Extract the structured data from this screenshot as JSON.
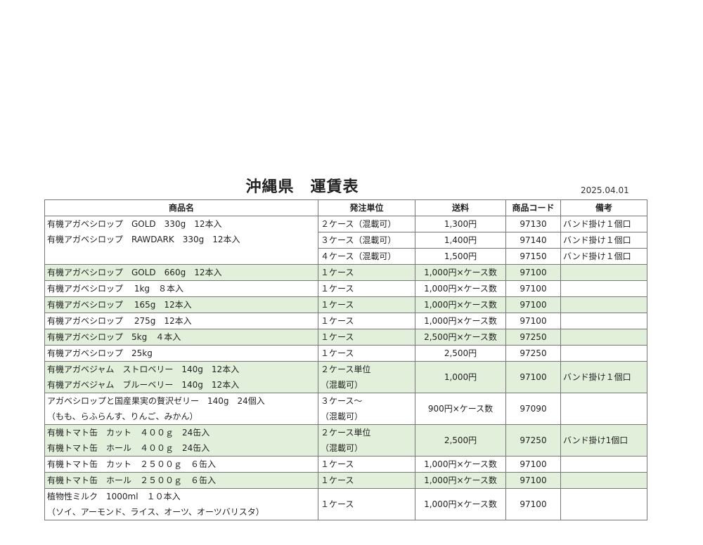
{
  "title": "沖縄県　運賃表",
  "date": "2025.04.01",
  "colors": {
    "row_highlight": "#e2efda",
    "border": "#777777"
  },
  "headers": [
    "商品名",
    "発注単位",
    "送料",
    "商品コード",
    "備考"
  ],
  "groups": [
    {
      "green": false,
      "name": [
        "有機アガベシロップ　GOLD　330g　12本入",
        "有機アガベシロップ　RAWDARK　330g　12本入"
      ],
      "rows": [
        {
          "unit": [
            "２ケース（混載可）"
          ],
          "fee": "1,300円",
          "code": "97130",
          "note": "バンド掛け１個口"
        },
        {
          "unit": [
            "３ケース（混載可）"
          ],
          "fee": "1,400円",
          "code": "97140",
          "note": "バンド掛け１個口"
        },
        {
          "unit": [
            "４ケース（混載可）"
          ],
          "fee": "1,500円",
          "code": "97150",
          "note": "バンド掛け１個口"
        }
      ]
    },
    {
      "green": true,
      "name": [
        "有機アガベシロップ　GOLD　660g　12本入"
      ],
      "rows": [
        {
          "unit": [
            "１ケース"
          ],
          "fee": "1,000円×ケース数",
          "code": "97100",
          "note": ""
        }
      ]
    },
    {
      "green": false,
      "name": [
        "有機アガベシロップ　 1kg　８本入"
      ],
      "rows": [
        {
          "unit": [
            "１ケース"
          ],
          "fee": "1,000円×ケース数",
          "code": "97100",
          "note": ""
        }
      ]
    },
    {
      "green": true,
      "name": [
        "有機アガベシロップ　 165g　12本入"
      ],
      "rows": [
        {
          "unit": [
            "１ケース"
          ],
          "fee": "1,000円×ケース数",
          "code": "97100",
          "note": ""
        }
      ]
    },
    {
      "green": false,
      "name": [
        "有機アガベシロップ　 275g　12本入"
      ],
      "rows": [
        {
          "unit": [
            "１ケース"
          ],
          "fee": "1,000円×ケース数",
          "code": "97100",
          "note": ""
        }
      ]
    },
    {
      "green": true,
      "name": [
        "有機アガベシロップ　5kg　４本入"
      ],
      "rows": [
        {
          "unit": [
            "１ケース"
          ],
          "fee": "2,500円×ケース数",
          "code": "97250",
          "note": ""
        }
      ]
    },
    {
      "green": false,
      "name": [
        "有機アガベシロップ　25kg"
      ],
      "rows": [
        {
          "unit": [
            "１ケース"
          ],
          "fee": "2,500円",
          "code": "97250",
          "note": ""
        }
      ]
    },
    {
      "green": true,
      "name": [
        "有機アガベジャム　ストロベリー　140g　12本入",
        "有機アガベジャム　ブルーベリー　140g　12本入"
      ],
      "rows": [
        {
          "unit": [
            "２ケース単位",
            "（混載可）"
          ],
          "fee": "1,000円",
          "code": "97100",
          "note": "バンド掛け１個口"
        }
      ]
    },
    {
      "green": false,
      "name": [
        "アガベシロップと国産果実の贅沢ゼリー　140g　24個入",
        "（もも、らふらんす、りんご、みかん）"
      ],
      "rows": [
        {
          "unit": [
            "３ケース～",
            "（混載可）"
          ],
          "fee": "900円×ケース数",
          "code": "97090",
          "note": ""
        }
      ]
    },
    {
      "green": true,
      "name": [
        "有機トマト缶　カット　４００ｇ　24缶入",
        "有機トマト缶　ホール　４００ｇ　24缶入"
      ],
      "rows": [
        {
          "unit": [
            "２ケース単位",
            "（混載可）"
          ],
          "fee": "2,500円",
          "code": "97250",
          "note": "バンド掛け1個口"
        }
      ]
    },
    {
      "green": false,
      "name": [
        "有機トマト缶　カット　２５００ｇ　６缶入"
      ],
      "rows": [
        {
          "unit": [
            "１ケース"
          ],
          "fee": "1,000円×ケース数",
          "code": "97100",
          "note": ""
        }
      ]
    },
    {
      "green": true,
      "name": [
        "有機トマト缶　ホール　２５００ｇ　６缶入"
      ],
      "rows": [
        {
          "unit": [
            "１ケース"
          ],
          "fee": "1,000円×ケース数",
          "code": "97100",
          "note": ""
        }
      ]
    },
    {
      "green": false,
      "name": [
        "植物性ミルク　1000ml　１０本入",
        "（ソイ、アーモンド、ライス、オーツ、オーツバリスタ）"
      ],
      "rows": [
        {
          "unit": [
            "１ケース"
          ],
          "fee": "1,000円×ケース数",
          "code": "97100",
          "note": ""
        }
      ]
    }
  ]
}
